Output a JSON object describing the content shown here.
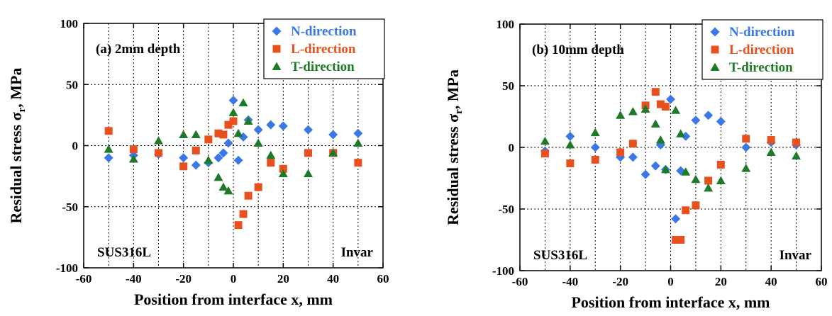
{
  "colors": {
    "n_direction": "#3b78e7",
    "l_direction": "#e8501e",
    "t_direction": "#1e7a28",
    "axis": "#000000"
  },
  "chart_data": [
    {
      "type": "scatter",
      "title": "(a) 2mm depth",
      "xlabel": "Position from interface x, mm",
      "ylabel": "Residual stress σ_r, MPa",
      "ylabel_main": "Residual stress σ",
      "ylabel_sub": "r",
      "ylabel_unit": ", MPa",
      "xlim": [
        -60,
        60
      ],
      "ylim": [
        -100,
        100
      ],
      "xticks": [
        -60,
        -40,
        -20,
        0,
        20,
        40,
        60
      ],
      "yticks": [
        -100,
        -50,
        0,
        50,
        100
      ],
      "grid": true,
      "legend_position": "top-right",
      "annotations": {
        "left": "SUS316L",
        "right": "Invar"
      },
      "series": [
        {
          "name": "N-direction",
          "marker": "diamond",
          "color": "#3b78e7",
          "points": [
            [
              -50,
              -10
            ],
            [
              -40,
              -8
            ],
            [
              -30,
              -7
            ],
            [
              -20,
              -10
            ],
            [
              -15,
              -16
            ],
            [
              -10,
              -14
            ],
            [
              -6,
              -10
            ],
            [
              -4,
              -6
            ],
            [
              -2,
              2
            ],
            [
              0,
              37
            ],
            [
              2,
              -12
            ],
            [
              4,
              7
            ],
            [
              6,
              21
            ],
            [
              10,
              13
            ],
            [
              15,
              17
            ],
            [
              20,
              16
            ],
            [
              30,
              13
            ],
            [
              40,
              9
            ],
            [
              50,
              10
            ]
          ]
        },
        {
          "name": "L-direction",
          "marker": "square",
          "color": "#e8501e",
          "points": [
            [
              -50,
              12
            ],
            [
              -40,
              -3
            ],
            [
              -30,
              -6
            ],
            [
              -20,
              -17
            ],
            [
              -15,
              -4
            ],
            [
              -10,
              5
            ],
            [
              -6,
              10
            ],
            [
              -4,
              9
            ],
            [
              -2,
              17
            ],
            [
              0,
              20
            ],
            [
              2,
              -65
            ],
            [
              4,
              -56
            ],
            [
              6,
              -41
            ],
            [
              10,
              -34
            ],
            [
              15,
              -14
            ],
            [
              20,
              -19
            ],
            [
              30,
              -6
            ],
            [
              40,
              -6
            ],
            [
              50,
              -14
            ]
          ]
        },
        {
          "name": "T-direction",
          "marker": "triangle",
          "color": "#1e7a28",
          "points": [
            [
              -50,
              -3
            ],
            [
              -40,
              -11
            ],
            [
              -30,
              4
            ],
            [
              -20,
              9
            ],
            [
              -15,
              9
            ],
            [
              -10,
              -12
            ],
            [
              -6,
              -26
            ],
            [
              -4,
              -34
            ],
            [
              -2,
              -37
            ],
            [
              0,
              27
            ],
            [
              2,
              10
            ],
            [
              4,
              35
            ],
            [
              6,
              20
            ],
            [
              10,
              2
            ],
            [
              15,
              -8
            ],
            [
              20,
              -23
            ],
            [
              30,
              -23
            ],
            [
              40,
              -6
            ],
            [
              50,
              2
            ]
          ]
        }
      ]
    },
    {
      "type": "scatter",
      "title": "(b) 10mm depth",
      "xlabel": "Position from interface x, mm",
      "ylabel": "Residual stress σ_r, MPa",
      "ylabel_main": "Residual stress σ",
      "ylabel_sub": "r",
      "ylabel_unit": ", MPa",
      "xlim": [
        -60,
        60
      ],
      "ylim": [
        -100,
        100
      ],
      "xticks": [
        -60,
        -40,
        -20,
        0,
        20,
        40,
        60
      ],
      "yticks": [
        -100,
        -50,
        0,
        50,
        100
      ],
      "grid": true,
      "legend_position": "top-right",
      "annotations": {
        "left": "SUS316L",
        "right": "Invar"
      },
      "series": [
        {
          "name": "N-direction",
          "marker": "diamond",
          "color": "#3b78e7",
          "points": [
            [
              -50,
              -3
            ],
            [
              -40,
              9
            ],
            [
              -30,
              0
            ],
            [
              -20,
              -8
            ],
            [
              -15,
              -8
            ],
            [
              -10,
              -22
            ],
            [
              -6,
              -15
            ],
            [
              -4,
              2
            ],
            [
              -2,
              -18
            ],
            [
              0,
              39
            ],
            [
              2,
              -58
            ],
            [
              4,
              -19
            ],
            [
              6,
              9
            ],
            [
              10,
              22
            ],
            [
              15,
              26
            ],
            [
              20,
              21
            ],
            [
              30,
              0
            ],
            [
              40,
              4
            ],
            [
              50,
              2
            ]
          ]
        },
        {
          "name": "L-direction",
          "marker": "square",
          "color": "#e8501e",
          "points": [
            [
              -50,
              -5
            ],
            [
              -40,
              -13
            ],
            [
              -30,
              -10
            ],
            [
              -20,
              -4
            ],
            [
              -15,
              3
            ],
            [
              -10,
              34
            ],
            [
              -6,
              45
            ],
            [
              -4,
              35
            ],
            [
              -2,
              33
            ],
            [
              2,
              -75
            ],
            [
              4,
              -75
            ],
            [
              6,
              -51
            ],
            [
              10,
              -47
            ],
            [
              15,
              -27
            ],
            [
              20,
              -14
            ],
            [
              30,
              7
            ],
            [
              40,
              6
            ],
            [
              50,
              4
            ]
          ]
        },
        {
          "name": "T-direction",
          "marker": "triangle",
          "color": "#1e7a28",
          "points": [
            [
              -50,
              5
            ],
            [
              -40,
              2
            ],
            [
              -30,
              12
            ],
            [
              -20,
              26
            ],
            [
              -15,
              29
            ],
            [
              -10,
              31
            ],
            [
              -6,
              19
            ],
            [
              -4,
              6
            ],
            [
              -2,
              -18
            ],
            [
              2,
              30
            ],
            [
              4,
              11
            ],
            [
              6,
              -20
            ],
            [
              10,
              -26
            ],
            [
              15,
              -33
            ],
            [
              20,
              -27
            ],
            [
              30,
              -17
            ],
            [
              40,
              -4
            ],
            [
              50,
              -7
            ]
          ]
        }
      ]
    }
  ]
}
